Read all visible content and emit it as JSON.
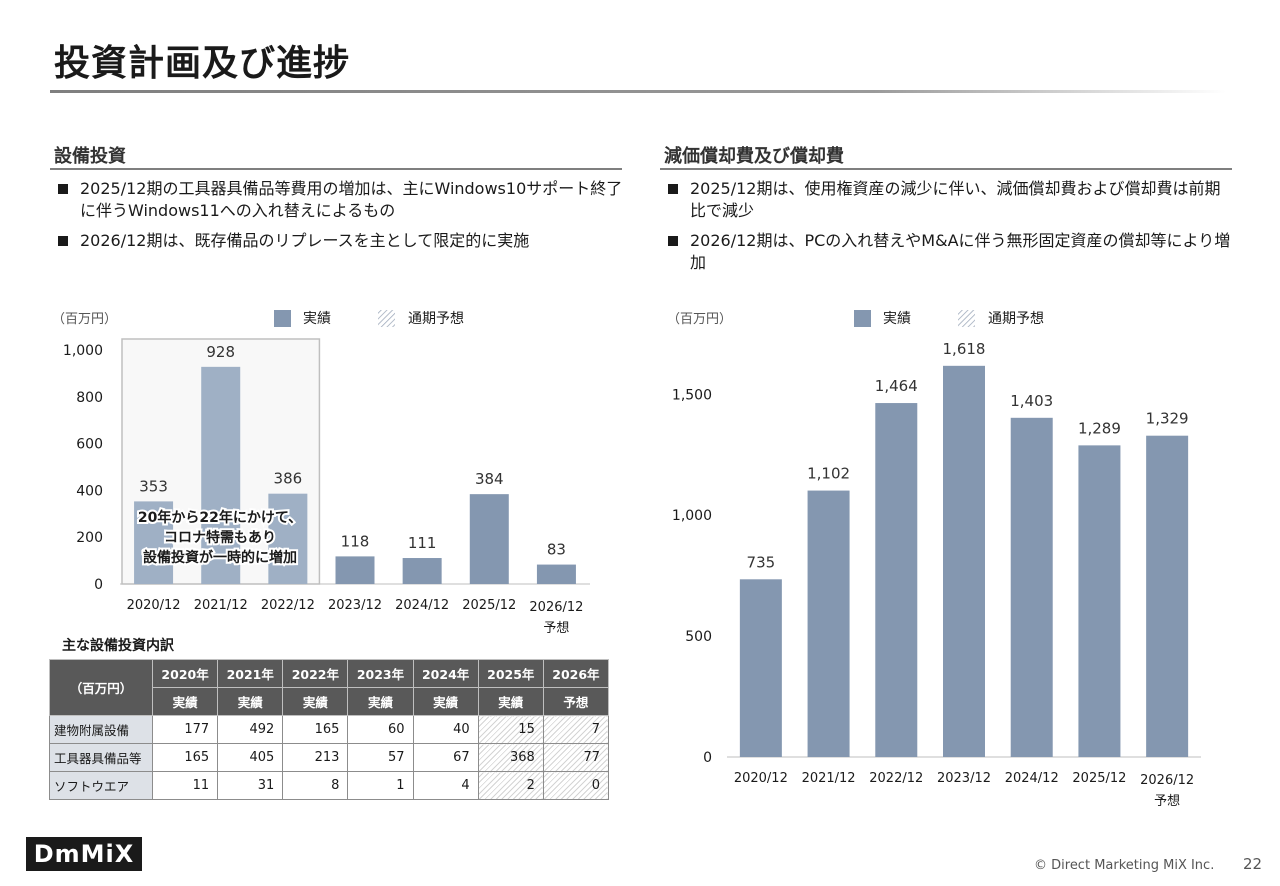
{
  "page": {
    "title": "投資計画及び進捗",
    "copyright": "© Direct Marketing MiX Inc.",
    "page_number": "22",
    "logo": "DmMiX"
  },
  "colors": {
    "bar": "#8497b0",
    "bar_light": "#9fb0c5",
    "axis": "#bfbfbf"
  },
  "left": {
    "heading": "設備投資",
    "bullets": [
      "2025/12期の工具器具備品等費用の増加は、主にWindows10サポート終了に伴うWindows11への入れ替えによるもの",
      "2026/12期は、既存備品のリプレースを主として限定的に実施"
    ]
  },
  "right": {
    "heading": "減価償却費及び償却費",
    "bullets": [
      "2025/12期は、使用権資産の減少に伴い、減価償却費および償却費は前期比で減少",
      "2026/12期は、PCの入れ替えやM&Aに伴う無形固定資産の償却等により増加"
    ]
  },
  "chart_data": [
    {
      "type": "bar",
      "unit_label": "（百万円）",
      "legend": [
        "実績",
        "通期予想"
      ],
      "categories": [
        "2020/12",
        "2021/12",
        "2022/12",
        "2023/12",
        "2024/12",
        "2025/12",
        "2026/12"
      ],
      "category_sub": [
        "",
        "",
        "",
        "",
        "",
        "",
        "予想"
      ],
      "values": [
        353,
        928,
        386,
        118,
        111,
        384,
        83
      ],
      "value_labels": [
        "353",
        "928",
        "386",
        "118",
        "111",
        "384",
        "83"
      ],
      "yticks": [
        0,
        200,
        400,
        600,
        800,
        1000
      ],
      "ytick_labels": [
        "0",
        "200",
        "400",
        "600",
        "800",
        "1,000"
      ],
      "ylim": [
        0,
        1000
      ],
      "highlight_categories": [
        "2020/12",
        "2021/12",
        "2022/12"
      ],
      "annotation": [
        "20年から22年にかけて、",
        "コロナ特需もあり",
        "設備投資が一時的に増加"
      ]
    },
    {
      "type": "bar",
      "unit_label": "（百万円）",
      "legend": [
        "実績",
        "通期予想"
      ],
      "categories": [
        "2020/12",
        "2021/12",
        "2022/12",
        "2023/12",
        "2024/12",
        "2025/12",
        "2026/12"
      ],
      "category_sub": [
        "",
        "",
        "",
        "",
        "",
        "",
        "予想"
      ],
      "values": [
        735,
        1102,
        1464,
        1618,
        1403,
        1289,
        1329
      ],
      "value_labels": [
        "735",
        "1,102",
        "1,464",
        "1,618",
        "1,403",
        "1,289",
        "1,329"
      ],
      "yticks": [
        0,
        500,
        1000,
        1500
      ],
      "ytick_labels": [
        "0",
        "500",
        "1,000",
        "1,500"
      ],
      "ylim": [
        0,
        1700
      ]
    }
  ],
  "table": {
    "caption": "主な設備投資内訳",
    "corner": "（百万円）",
    "years": [
      "2020年",
      "2021年",
      "2022年",
      "2023年",
      "2024年",
      "2025年",
      "2026年"
    ],
    "kinds": [
      "実績",
      "実績",
      "実績",
      "実績",
      "実績",
      "実績",
      "予想"
    ],
    "rows": [
      {
        "label": "建物附属設備",
        "values": [
          "177",
          "492",
          "165",
          "60",
          "40",
          "15",
          "7"
        ]
      },
      {
        "label": "工具器具備品等",
        "values": [
          "165",
          "405",
          "213",
          "57",
          "67",
          "368",
          "77"
        ]
      },
      {
        "label": "ソフトウエア",
        "values": [
          "11",
          "31",
          "8",
          "1",
          "4",
          "2",
          "0"
        ]
      }
    ]
  }
}
